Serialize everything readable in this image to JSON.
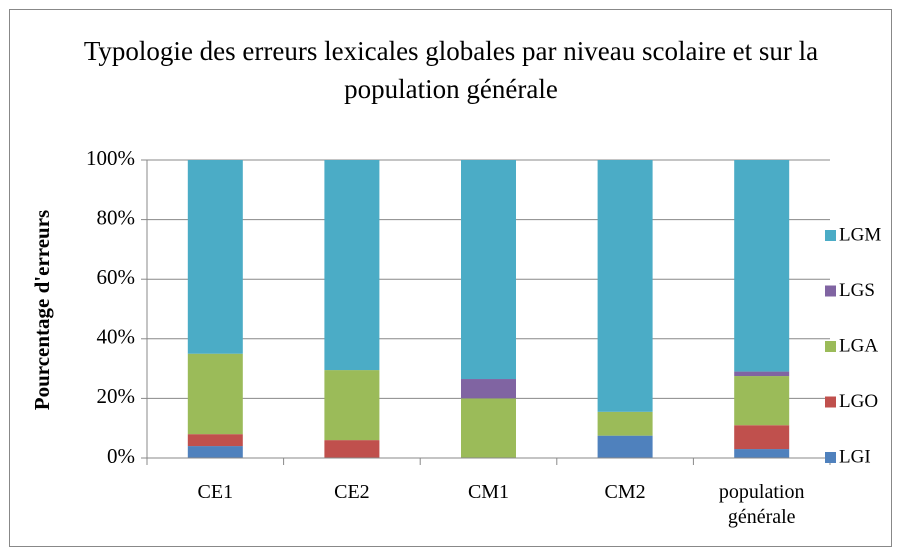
{
  "chart_data": {
    "type": "stacked_bar",
    "title": "Typologie des erreurs lexicales globales par niveau scolaire et sur la population générale",
    "y_label": "Pourcentage d'erreurs",
    "categories": [
      "CE1",
      "CE2",
      "CM1",
      "CM2",
      "population générale"
    ],
    "series": [
      {
        "name": "LGI",
        "color": "#4f81bd",
        "values": [
          4,
          0,
          0,
          7.5,
          3
        ]
      },
      {
        "name": "LGO",
        "color": "#c0504d",
        "values": [
          4,
          6,
          0,
          0,
          8
        ]
      },
      {
        "name": "LGA",
        "color": "#9bbb59",
        "values": [
          27,
          23.5,
          20,
          8,
          16.5
        ]
      },
      {
        "name": "LGS",
        "color": "#8064a2",
        "values": [
          0,
          0,
          6.5,
          0,
          1.5
        ]
      },
      {
        "name": "LGM",
        "color": "#4bacc6",
        "values": [
          65,
          70.5,
          73.5,
          84.5,
          71
        ]
      }
    ],
    "ylim": [
      0,
      100
    ],
    "yticks": [
      {
        "value": 0,
        "label": "0%"
      },
      {
        "value": 20,
        "label": "20%"
      },
      {
        "value": 40,
        "label": "40%"
      },
      {
        "value": 60,
        "label": "60%"
      },
      {
        "value": 80,
        "label": "80%"
      },
      {
        "value": 100,
        "label": "100%"
      }
    ],
    "grid": true,
    "legend": "right"
  }
}
